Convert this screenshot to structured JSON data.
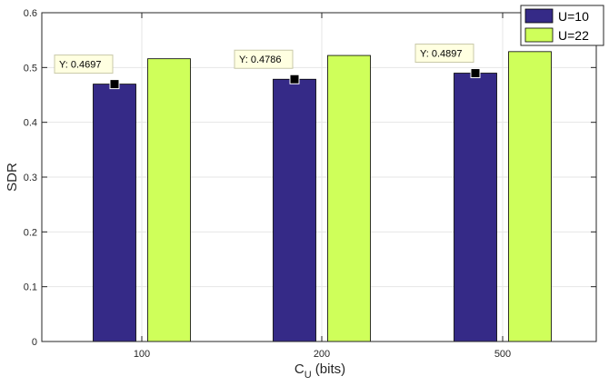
{
  "chart_data": {
    "type": "bar",
    "categories": [
      "100",
      "200",
      "500"
    ],
    "series": [
      {
        "name": "U=10",
        "values": [
          0.4697,
          0.4786,
          0.4897
        ],
        "color": "#352a87"
      },
      {
        "name": "U=22",
        "values": [
          0.516,
          0.522,
          0.529
        ],
        "color": "#cfff5a"
      }
    ],
    "datatips": [
      {
        "series": 0,
        "category": 0,
        "label": "Y: 0.4697"
      },
      {
        "series": 0,
        "category": 1,
        "label": "Y: 0.4786"
      },
      {
        "series": 0,
        "category": 2,
        "label": "Y: 0.4897"
      }
    ],
    "ylabel": "SDR",
    "xlabel_main": "C",
    "xlabel_sub": "U",
    "xlabel_suffix": " (bits)",
    "ylim": [
      0,
      0.6
    ],
    "yticks": [
      0,
      0.1,
      0.2,
      0.3,
      0.4,
      0.5,
      0.6
    ],
    "ytick_labels": [
      "0",
      "0.1",
      "0.2",
      "0.3",
      "0.4",
      "0.5",
      "0.6"
    ],
    "grid": true,
    "legend_position": "top-right",
    "datatip_bg": "#ffffe1"
  }
}
